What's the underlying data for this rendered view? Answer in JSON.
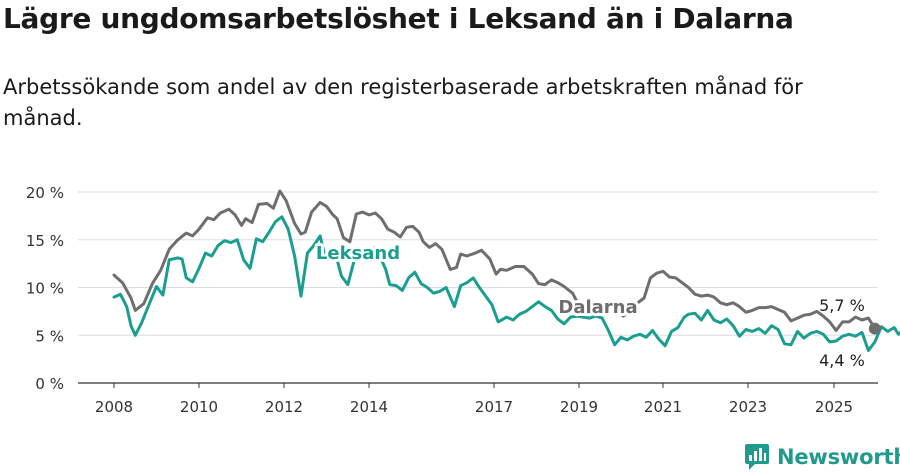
{
  "chart_data": {
    "type": "line",
    "title": "Lägre ungdomsarbetslöshet i Leksand än i Dalarna",
    "subtitle": "Arbetssökande som andel av den registerbaserade arbetskraften månad för månad.",
    "ylim": [
      0,
      20
    ],
    "y_ticks": [
      "0 %",
      "5 %",
      "10 %",
      "15 %",
      "20 %"
    ],
    "x_ticks": [
      "2008",
      "2010",
      "2012",
      "2014",
      "2017",
      "2019",
      "2021",
      "2023",
      "2025"
    ],
    "grid": true,
    "series": [
      {
        "name": "Dalarna",
        "color": "#6e6e6e",
        "end_label": "5,7 %",
        "points": [
          [
            2008.0,
            11.3
          ],
          [
            2008.2,
            10.5
          ],
          [
            2008.4,
            8.9
          ],
          [
            2008.5,
            7.6
          ],
          [
            2008.7,
            8.3
          ],
          [
            2008.9,
            10.4
          ],
          [
            2009.1,
            11.8
          ],
          [
            2009.3,
            14.0
          ],
          [
            2009.5,
            15.0
          ],
          [
            2009.7,
            15.7
          ],
          [
            2009.85,
            15.4
          ],
          [
            2010.0,
            16.1
          ],
          [
            2010.2,
            17.3
          ],
          [
            2010.35,
            17.1
          ],
          [
            2010.5,
            17.8
          ],
          [
            2010.7,
            18.2
          ],
          [
            2010.85,
            17.6
          ],
          [
            2011.0,
            16.5
          ],
          [
            2011.1,
            17.2
          ],
          [
            2011.25,
            16.8
          ],
          [
            2011.4,
            18.7
          ],
          [
            2011.6,
            18.8
          ],
          [
            2011.75,
            18.3
          ],
          [
            2011.9,
            20.1
          ],
          [
            2012.05,
            19.1
          ],
          [
            2012.25,
            16.7
          ],
          [
            2012.4,
            15.6
          ],
          [
            2012.5,
            15.8
          ],
          [
            2012.65,
            17.9
          ],
          [
            2012.85,
            18.9
          ],
          [
            2013.0,
            18.5
          ],
          [
            2013.15,
            17.6
          ],
          [
            2013.25,
            17.2
          ],
          [
            2013.4,
            15.2
          ],
          [
            2013.55,
            14.8
          ],
          [
            2013.7,
            17.7
          ],
          [
            2013.85,
            17.9
          ],
          [
            2014.0,
            17.6
          ],
          [
            2014.15,
            17.8
          ],
          [
            2014.3,
            17.2
          ],
          [
            2014.45,
            16.1
          ],
          [
            2014.6,
            15.8
          ],
          [
            2014.75,
            15.3
          ],
          [
            2014.9,
            16.3
          ],
          [
            2015.05,
            16.4
          ],
          [
            2015.2,
            15.8
          ],
          [
            2015.3,
            14.8
          ],
          [
            2015.45,
            14.2
          ],
          [
            2015.6,
            14.6
          ],
          [
            2015.75,
            14.0
          ],
          [
            2015.95,
            11.9
          ],
          [
            2016.1,
            12.1
          ],
          [
            2016.2,
            13.5
          ],
          [
            2016.35,
            13.3
          ],
          [
            2016.55,
            13.6
          ],
          [
            2016.7,
            13.9
          ],
          [
            2016.9,
            13.0
          ],
          [
            2017.05,
            11.4
          ],
          [
            2017.15,
            11.9
          ],
          [
            2017.3,
            11.8
          ],
          [
            2017.5,
            12.2
          ],
          [
            2017.7,
            12.2
          ],
          [
            2017.9,
            11.4
          ],
          [
            2018.05,
            10.4
          ],
          [
            2018.2,
            10.3
          ],
          [
            2018.35,
            10.8
          ],
          [
            2018.5,
            10.5
          ],
          [
            2018.65,
            10.1
          ],
          [
            2018.85,
            9.4
          ],
          [
            2019.0,
            8.1
          ],
          [
            2019.3,
            8.2
          ],
          [
            2019.6,
            8.0
          ],
          [
            2019.9,
            7.8
          ],
          [
            2020.05,
            7.0
          ],
          [
            2020.25,
            7.6
          ],
          [
            2020.4,
            8.4
          ],
          [
            2020.55,
            8.9
          ],
          [
            2020.7,
            11.0
          ],
          [
            2020.85,
            11.5
          ],
          [
            2021.0,
            11.7
          ],
          [
            2021.15,
            11.1
          ],
          [
            2021.3,
            11.0
          ],
          [
            2021.45,
            10.5
          ],
          [
            2021.6,
            10.0
          ],
          [
            2021.75,
            9.3
          ],
          [
            2021.9,
            9.1
          ],
          [
            2022.05,
            9.2
          ],
          [
            2022.2,
            9.0
          ],
          [
            2022.35,
            8.4
          ],
          [
            2022.5,
            8.2
          ],
          [
            2022.65,
            8.4
          ],
          [
            2022.8,
            8.0
          ],
          [
            2022.95,
            7.4
          ],
          [
            2023.1,
            7.6
          ],
          [
            2023.25,
            7.9
          ],
          [
            2023.4,
            7.9
          ],
          [
            2023.55,
            8.0
          ],
          [
            2023.7,
            7.7
          ],
          [
            2023.85,
            7.4
          ],
          [
            2024.0,
            6.5
          ],
          [
            2024.15,
            6.8
          ],
          [
            2024.3,
            7.1
          ],
          [
            2024.45,
            7.2
          ],
          [
            2024.6,
            7.5
          ],
          [
            2024.75,
            7.0
          ],
          [
            2024.9,
            6.4
          ],
          [
            2025.05,
            5.5
          ],
          [
            2025.2,
            6.4
          ],
          [
            2025.35,
            6.4
          ],
          [
            2025.5,
            6.9
          ],
          [
            2025.65,
            6.6
          ],
          [
            2025.8,
            6.8
          ],
          [
            2025.95,
            5.7
          ]
        ]
      },
      {
        "name": "Leksand",
        "color": "#1a9e8f",
        "end_label": "4,4 %",
        "points": [
          [
            2008.0,
            9.0
          ],
          [
            2008.15,
            9.3
          ],
          [
            2008.3,
            8.0
          ],
          [
            2008.4,
            6.0
          ],
          [
            2008.5,
            5.0
          ],
          [
            2008.65,
            6.3
          ],
          [
            2008.85,
            8.5
          ],
          [
            2009.0,
            10.1
          ],
          [
            2009.15,
            9.2
          ],
          [
            2009.3,
            12.9
          ],
          [
            2009.5,
            13.1
          ],
          [
            2009.6,
            13.0
          ],
          [
            2009.7,
            11.0
          ],
          [
            2009.85,
            10.6
          ],
          [
            2010.0,
            12.0
          ],
          [
            2010.15,
            13.6
          ],
          [
            2010.3,
            13.3
          ],
          [
            2010.45,
            14.4
          ],
          [
            2010.6,
            14.9
          ],
          [
            2010.75,
            14.7
          ],
          [
            2010.9,
            15.0
          ],
          [
            2011.05,
            12.9
          ],
          [
            2011.2,
            12.0
          ],
          [
            2011.35,
            15.1
          ],
          [
            2011.5,
            14.8
          ],
          [
            2011.65,
            15.8
          ],
          [
            2011.8,
            16.9
          ],
          [
            2011.95,
            17.4
          ],
          [
            2012.1,
            16.1
          ],
          [
            2012.25,
            13.3
          ],
          [
            2012.4,
            9.1
          ],
          [
            2012.55,
            13.6
          ],
          [
            2012.7,
            14.4
          ],
          [
            2012.85,
            15.4
          ],
          [
            2012.95,
            13.5
          ],
          [
            2013.1,
            13.3
          ],
          [
            2013.25,
            12.9
          ],
          [
            2013.35,
            11.2
          ],
          [
            2013.5,
            10.3
          ],
          [
            2013.65,
            12.8
          ],
          [
            2014.15,
            14.2
          ],
          [
            2014.3,
            12.9
          ],
          [
            2014.4,
            11.9
          ],
          [
            2014.5,
            10.3
          ],
          [
            2014.65,
            10.2
          ],
          [
            2014.8,
            9.7
          ],
          [
            2014.95,
            11.0
          ],
          [
            2015.1,
            11.6
          ],
          [
            2015.25,
            10.4
          ],
          [
            2015.4,
            10.0
          ],
          [
            2015.55,
            9.4
          ],
          [
            2015.7,
            9.6
          ],
          [
            2015.85,
            10.0
          ],
          [
            2016.05,
            8.0
          ],
          [
            2016.2,
            10.2
          ],
          [
            2016.35,
            10.5
          ],
          [
            2016.5,
            11.0
          ],
          [
            2016.65,
            10.0
          ],
          [
            2016.8,
            9.1
          ],
          [
            2016.95,
            8.2
          ],
          [
            2017.1,
            6.4
          ],
          [
            2017.3,
            6.9
          ],
          [
            2017.45,
            6.6
          ],
          [
            2017.6,
            7.2
          ],
          [
            2017.75,
            7.5
          ],
          [
            2017.9,
            8.0
          ],
          [
            2018.05,
            8.5
          ],
          [
            2018.2,
            8.0
          ],
          [
            2018.35,
            7.6
          ],
          [
            2018.5,
            6.7
          ],
          [
            2018.65,
            6.2
          ],
          [
            2018.8,
            6.9
          ],
          [
            2018.95,
            7.0
          ],
          [
            2019.1,
            6.9
          ],
          [
            2019.25,
            6.8
          ],
          [
            2019.4,
            7.0
          ],
          [
            2019.55,
            6.8
          ],
          [
            2019.7,
            5.5
          ],
          [
            2019.85,
            4.0
          ],
          [
            2020.0,
            4.8
          ],
          [
            2020.15,
            4.5
          ],
          [
            2020.3,
            4.9
          ],
          [
            2020.45,
            5.1
          ],
          [
            2020.6,
            4.8
          ],
          [
            2020.75,
            5.5
          ],
          [
            2020.9,
            4.6
          ],
          [
            2021.05,
            3.9
          ],
          [
            2021.2,
            5.4
          ],
          [
            2021.35,
            5.8
          ],
          [
            2021.5,
            6.9
          ],
          [
            2021.6,
            7.2
          ],
          [
            2021.75,
            7.3
          ],
          [
            2021.9,
            6.6
          ],
          [
            2022.05,
            7.6
          ],
          [
            2022.2,
            6.6
          ],
          [
            2022.35,
            6.3
          ],
          [
            2022.5,
            6.7
          ],
          [
            2022.65,
            6.0
          ],
          [
            2022.8,
            4.9
          ],
          [
            2022.95,
            5.6
          ],
          [
            2023.1,
            5.4
          ],
          [
            2023.25,
            5.7
          ],
          [
            2023.4,
            5.2
          ],
          [
            2023.55,
            6.0
          ],
          [
            2023.7,
            5.6
          ],
          [
            2023.85,
            4.1
          ],
          [
            2024.0,
            4.0
          ],
          [
            2024.15,
            5.4
          ],
          [
            2024.3,
            4.7
          ],
          [
            2024.45,
            5.2
          ],
          [
            2024.6,
            5.4
          ],
          [
            2024.75,
            5.1
          ],
          [
            2024.9,
            4.3
          ],
          [
            2025.05,
            4.4
          ],
          [
            2025.2,
            4.9
          ],
          [
            2025.35,
            5.1
          ],
          [
            2025.5,
            4.9
          ],
          [
            2025.65,
            5.3
          ],
          [
            2025.8,
            3.4
          ],
          [
            2025.95,
            4.3
          ],
          [
            2026.1,
            5.9
          ],
          [
            2026.25,
            5.4
          ],
          [
            2026.4,
            5.8
          ],
          [
            2026.5,
            5.1
          ],
          [
            2026.65,
            5.7
          ],
          [
            2026.8,
            5.0
          ],
          [
            2026.9,
            4.4
          ]
        ]
      }
    ]
  },
  "brand": {
    "name": "Newsworthy"
  }
}
